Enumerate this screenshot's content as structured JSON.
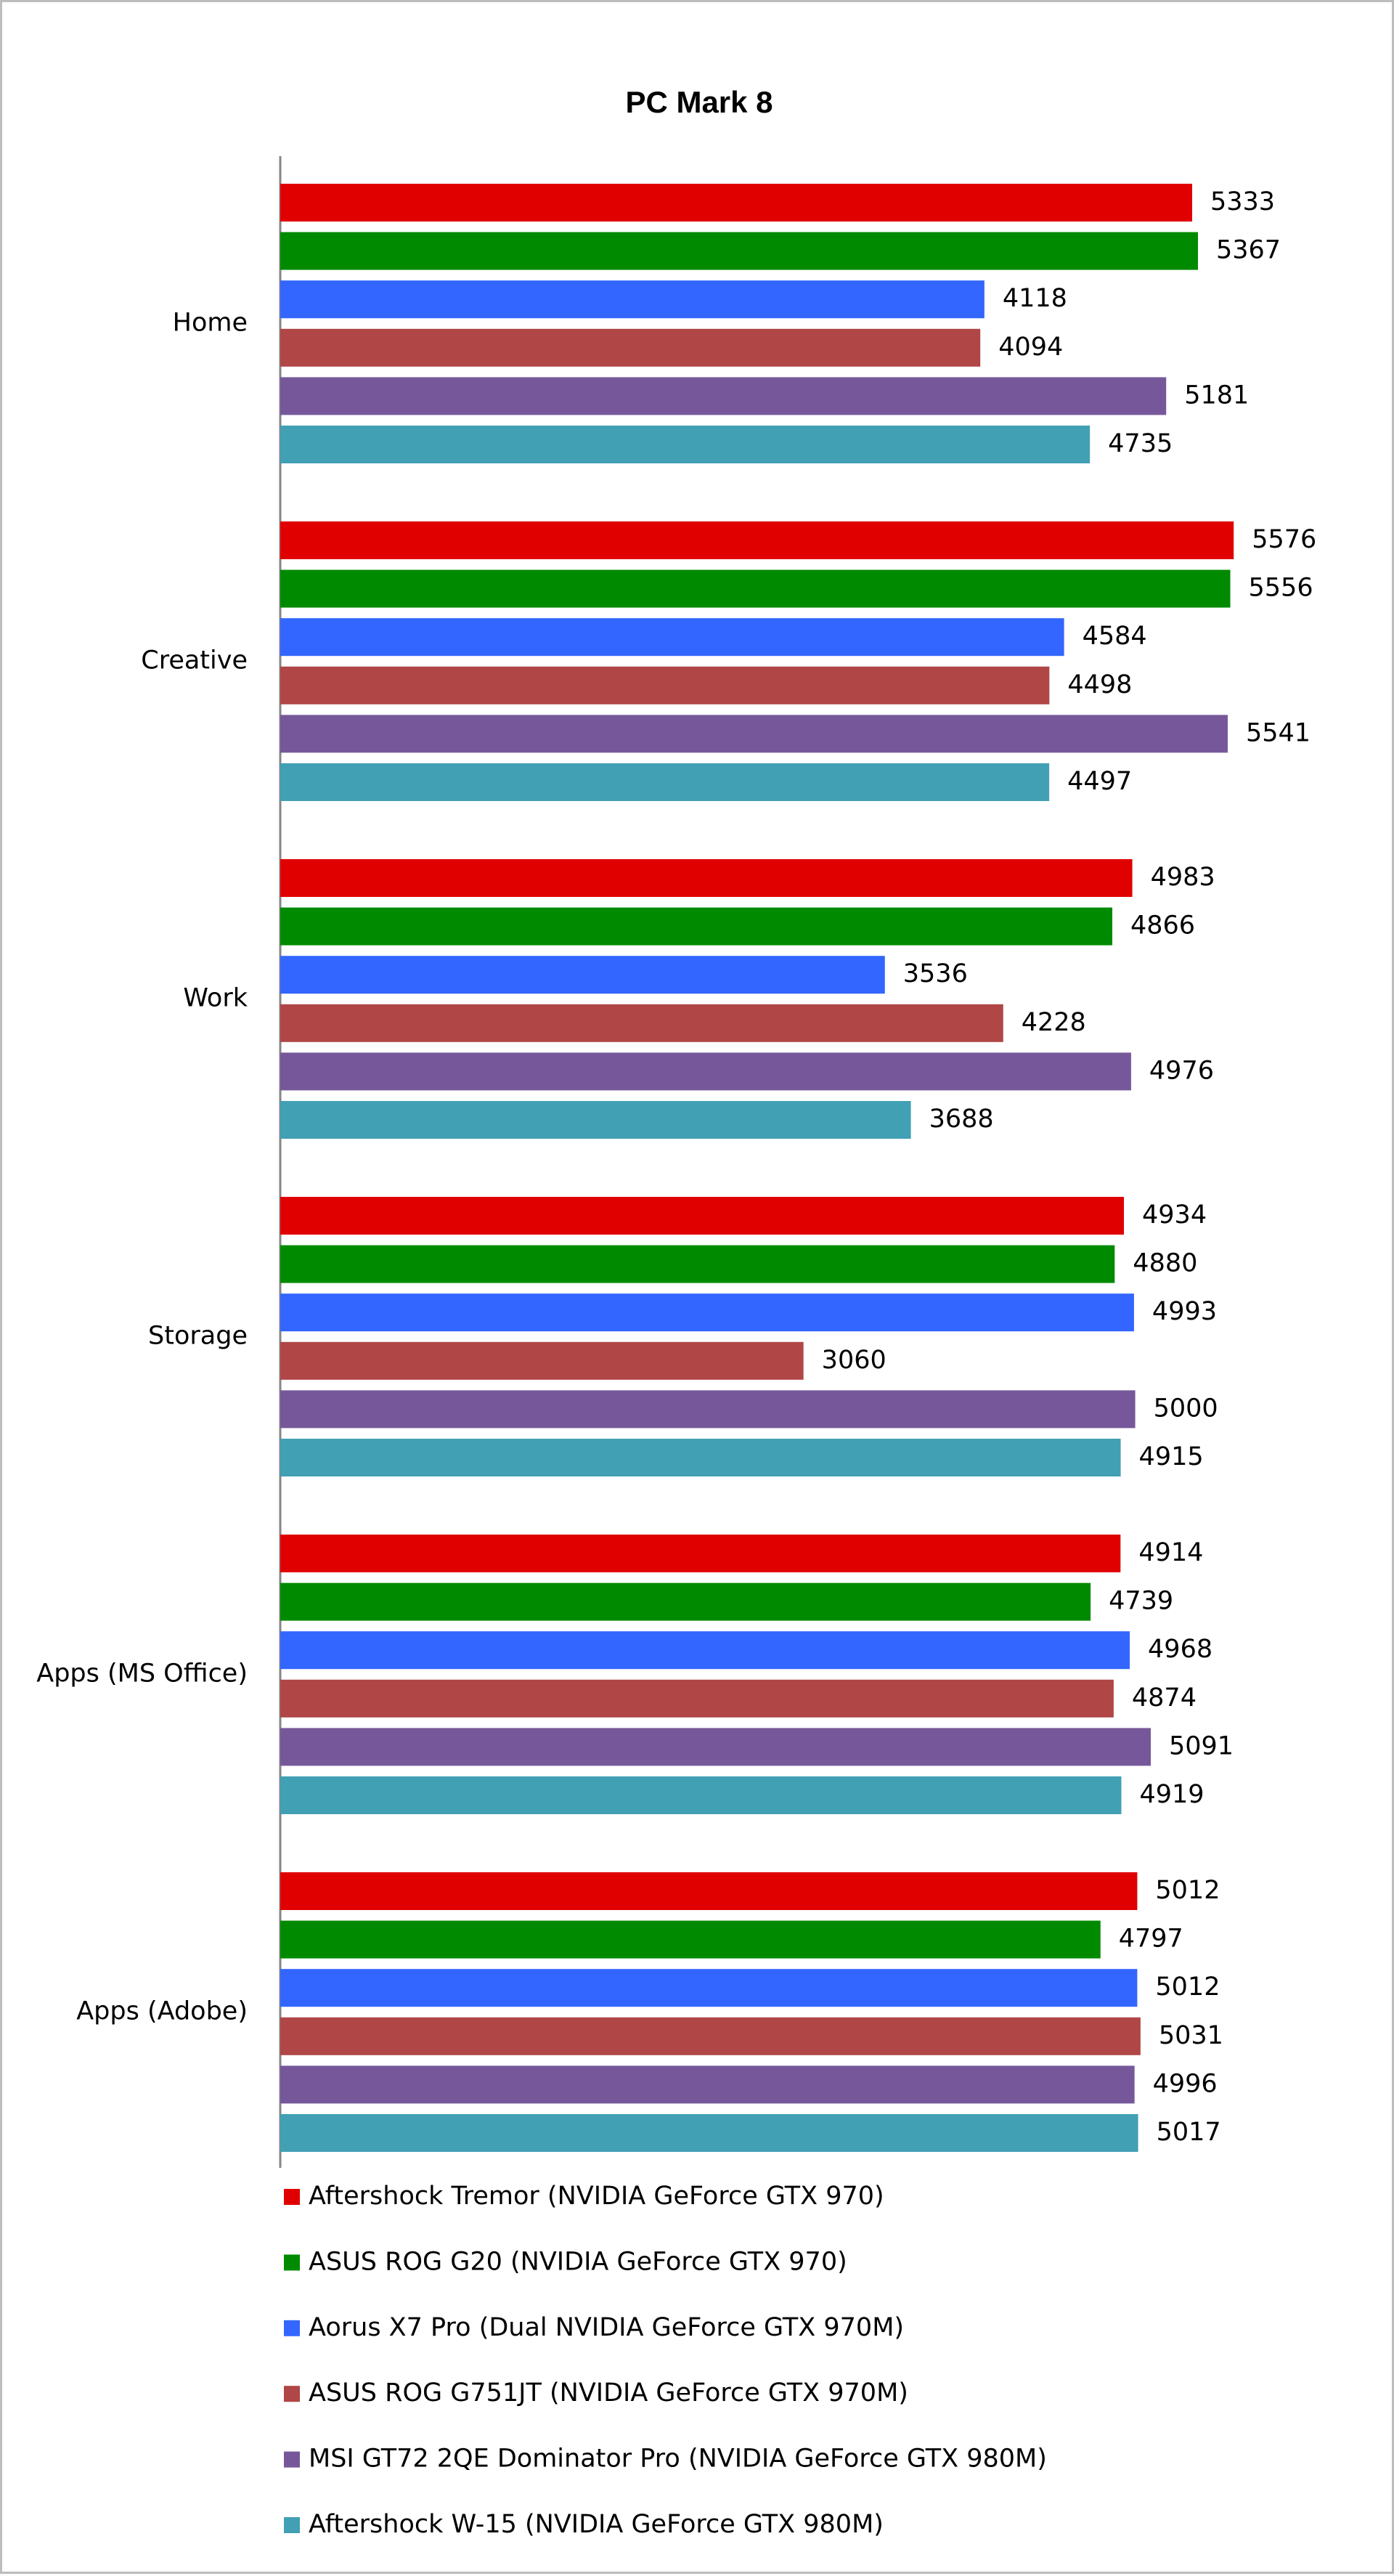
{
  "chart_data": {
    "type": "bar",
    "orientation": "horizontal",
    "title": "PC Mark 8",
    "xlabel": "",
    "ylabel": "",
    "xlim": [
      0,
      5700
    ],
    "grid": false,
    "legend_position": "bottom",
    "categories": [
      "Home",
      "Creative",
      "Work",
      "Storage",
      "Apps (MS Office)",
      "Apps (Adobe)"
    ],
    "series": [
      {
        "name": "Aftershock Tremor (NVIDIA GeForce GTX 970)",
        "color": "#e00000",
        "values": [
          5333,
          5576,
          4983,
          4934,
          4914,
          5012
        ]
      },
      {
        "name": "ASUS ROG G20 (NVIDIA GeForce GTX 970)",
        "color": "#008a00",
        "values": [
          5367,
          5556,
          4866,
          4880,
          4739,
          4797
        ]
      },
      {
        "name": "Aorus X7 Pro (Dual NVIDIA GeForce GTX 970M)",
        "color": "#3366ff",
        "values": [
          4118,
          4584,
          3536,
          4993,
          4968,
          5012
        ]
      },
      {
        "name": "ASUS ROG G751JT (NVIDIA GeForce GTX 970M)",
        "color": "#b04646",
        "values": [
          4094,
          4498,
          4228,
          3060,
          4874,
          5031
        ]
      },
      {
        "name": "MSI GT72 2QE Dominator Pro (NVIDIA GeForce GTX 980M)",
        "color": "#76589a",
        "values": [
          5181,
          5541,
          4976,
          5000,
          5091,
          4996
        ]
      },
      {
        "name": "Aftershock W-15 (NVIDIA GeForce GTX 980M)",
        "color": "#41a0b4",
        "values": [
          4735,
          4497,
          3688,
          4915,
          4919,
          5017
        ]
      }
    ]
  }
}
